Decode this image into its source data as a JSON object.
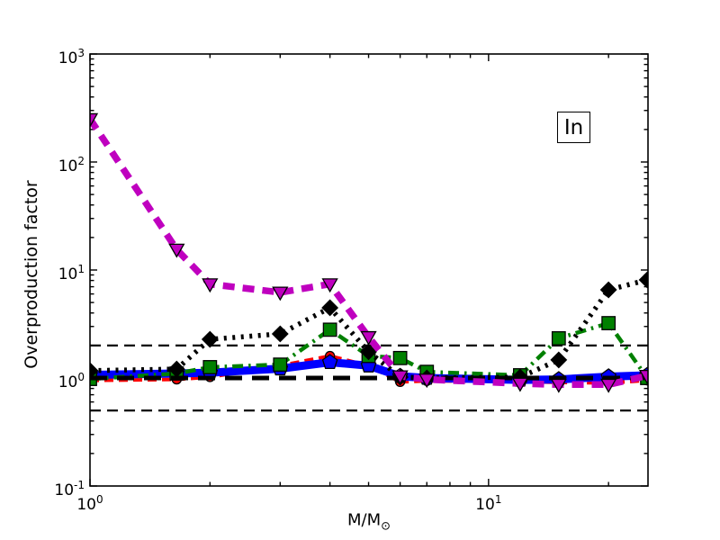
{
  "chart_data": {
    "type": "line",
    "title": "",
    "xlabel": "M/M⊙",
    "xlabel_main": "M/M",
    "xlabel_sub": "⊙",
    "ylabel": "Overproduction factor",
    "annotation": "In",
    "xscale": "log",
    "yscale": "log",
    "xlim": [
      1.0,
      25.12
    ],
    "ylim": [
      0.1,
      1000
    ],
    "grid": false,
    "legend": "none",
    "x_ticks": [
      {
        "value": 1,
        "label_base": "10",
        "label_exp": "0"
      },
      {
        "value": 10,
        "label_base": "10",
        "label_exp": "1"
      }
    ],
    "y_ticks": [
      {
        "value": 1000,
        "label_base": "10",
        "label_exp": "3"
      },
      {
        "value": 100,
        "label_base": "10",
        "label_exp": "2"
      },
      {
        "value": 10,
        "label_base": "10",
        "label_exp": "1"
      },
      {
        "value": 1,
        "label_base": "10",
        "label_exp": "0"
      },
      {
        "value": 0.1,
        "label_base": "10",
        "label_exp": "-1"
      }
    ],
    "reference_lines": [
      {
        "value": 2.0,
        "style": "thin-dashed",
        "color": "#000000"
      },
      {
        "value": 1.0,
        "style": "thick-dashed",
        "color": "#000000"
      },
      {
        "value": 0.5,
        "style": "thin-dashed",
        "color": "#000000"
      }
    ],
    "masses": [
      1.0,
      1.65,
      2.0,
      3.0,
      4.0,
      5.0,
      6.0,
      7.0,
      12.0,
      15.0,
      20.0,
      25.0
    ],
    "series": [
      {
        "name": "red-dashed-circles",
        "color": "#FF0000",
        "line_style": "dashed-thin",
        "line_width": 4,
        "marker": "circle",
        "layer": 1,
        "values": [
          0.95,
          0.97,
          1.02,
          1.3,
          1.6,
          1.3,
          0.92,
          0.94,
          0.93,
          0.91,
          0.9,
          0.95
        ]
      },
      {
        "name": "blue-solid-pentagons",
        "color": "#0000FF",
        "line_style": "solid",
        "line_width": 9,
        "marker": "pentagon",
        "layer": 1,
        "values": [
          1.07,
          1.1,
          1.12,
          1.22,
          1.4,
          1.3,
          1.04,
          1.0,
          0.96,
          0.97,
          1.03,
          1.06
        ]
      },
      {
        "name": "green-dashdot-squares",
        "color": "#008000",
        "line_style": "dashdot",
        "line_width": 4.5,
        "marker": "square",
        "layer": 1,
        "values": [
          0.98,
          1.1,
          1.26,
          1.33,
          2.8,
          1.6,
          1.53,
          1.14,
          1.06,
          2.33,
          3.22,
          1.0
        ]
      },
      {
        "name": "black-dotted-diamonds",
        "color": "#000000",
        "line_style": "dotted",
        "line_width": 5.5,
        "marker": "diamond",
        "layer": 2,
        "values": [
          1.17,
          1.21,
          2.28,
          2.56,
          4.47,
          1.75,
          1.02,
          1.0,
          1.02,
          1.47,
          6.55,
          8.1
        ]
      },
      {
        "name": "magenta-thick-dashed-triangles",
        "color": "#BF00BF",
        "line_style": "dashed",
        "line_width": 7.5,
        "marker": "triangle-down",
        "layer": 2,
        "values": [
          250,
          15.5,
          7.4,
          6.2,
          7.4,
          2.4,
          1.04,
          0.97,
          0.89,
          0.87,
          0.87,
          1.05
        ]
      }
    ],
    "colors": {
      "background": "#FFFFFF",
      "axes": "#000000",
      "magenta": "#BF00BF",
      "blue": "#0000FF",
      "green": "#008000",
      "red": "#FF0000",
      "black": "#000000"
    }
  }
}
